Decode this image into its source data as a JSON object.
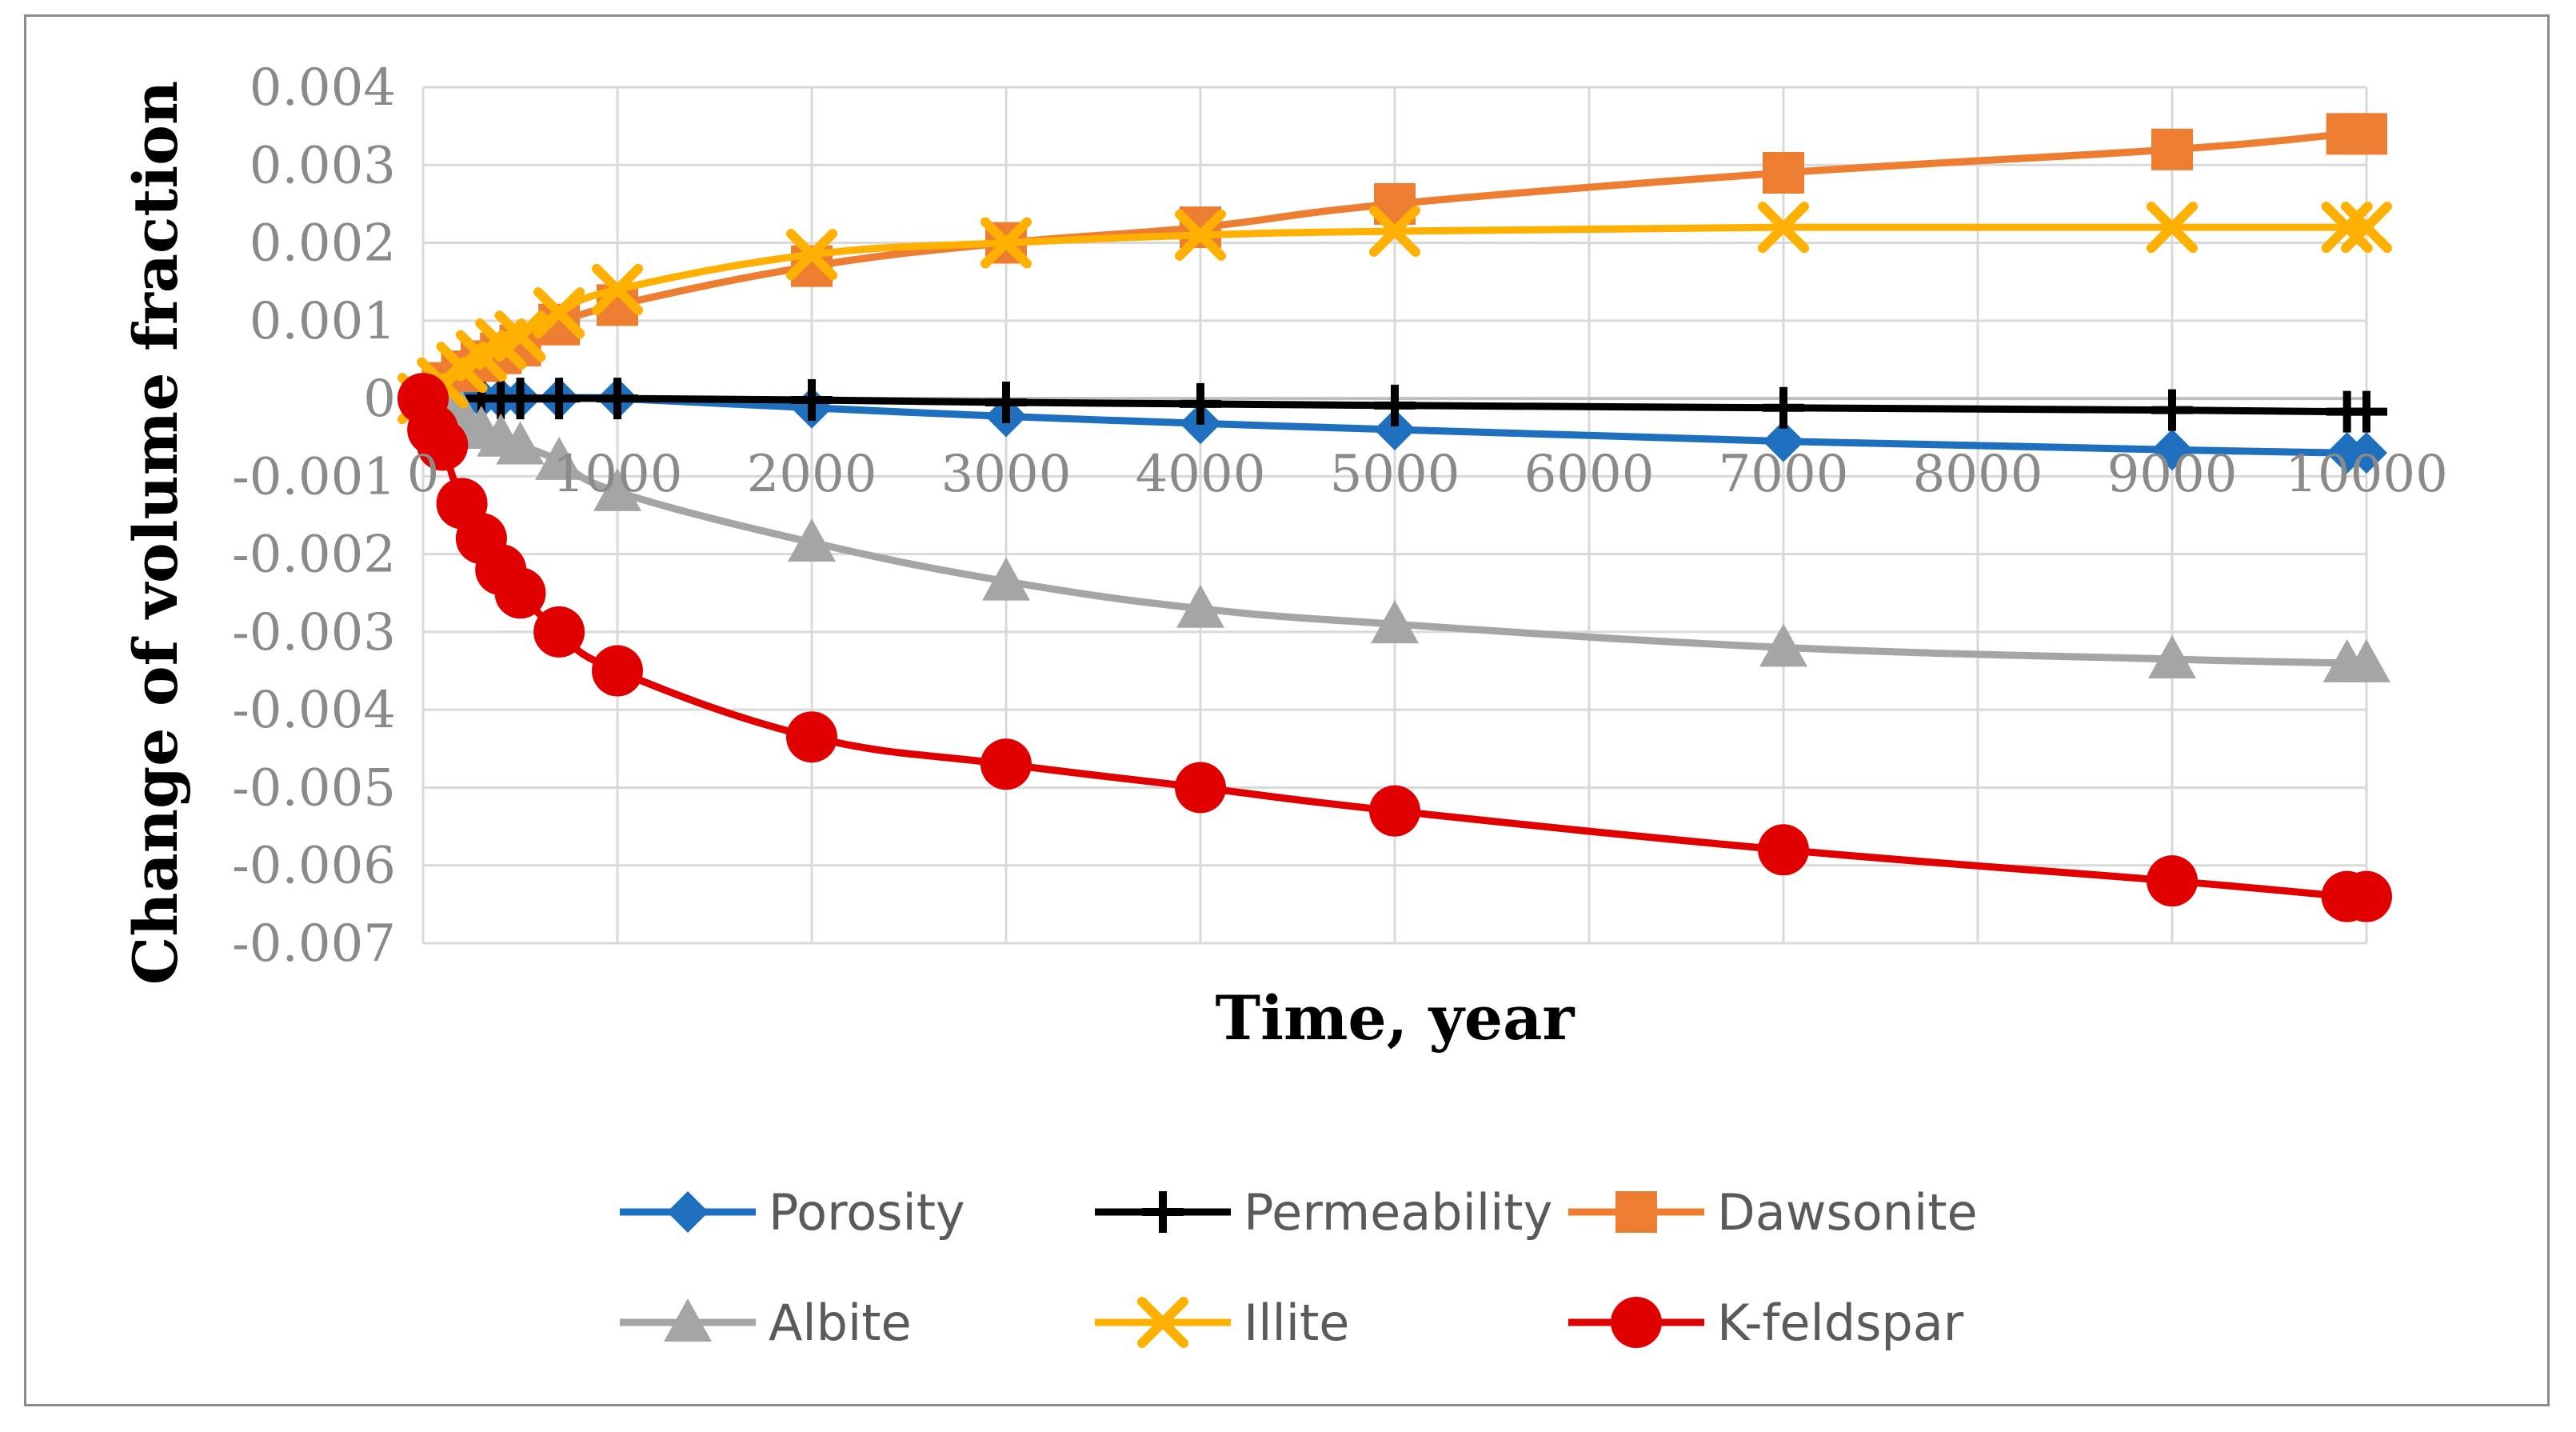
{
  "chart_data": {
    "type": "line",
    "title": "",
    "xlabel": "Time, year",
    "ylabel": "Change of volume fraction",
    "xlim": [
      0,
      10000
    ],
    "ylim": [
      -0.007,
      0.004
    ],
    "xticks": [
      0,
      1000,
      2000,
      3000,
      4000,
      5000,
      6000,
      7000,
      8000,
      9000,
      10000
    ],
    "xtick_labels": [
      "0",
      "1000",
      "2000",
      "3000",
      "4000",
      "5000",
      "6000",
      "7000",
      "8000",
      "9000",
      "10000"
    ],
    "yticks": [
      0.004,
      0.003,
      0.002,
      0.001,
      0,
      -0.001,
      -0.002,
      -0.003,
      -0.004,
      -0.005,
      -0.006,
      -0.007
    ],
    "ytick_labels": [
      "0.004",
      "0.003",
      "0.002",
      "0.001",
      "0",
      "-0.001",
      "-0.002",
      "-0.003",
      "-0.004",
      "-0.005",
      "-0.006",
      "-0.007"
    ],
    "grid": true,
    "legend_position": "bottom",
    "series": [
      {
        "name": "Porosity",
        "color": "#1f6fbf",
        "marker": "diamond",
        "x": [
          0,
          100,
          200,
          300,
          400,
          500,
          700,
          1000,
          2000,
          3000,
          4000,
          5000,
          7000,
          9000,
          9900,
          10000
        ],
        "y": [
          0,
          0,
          0,
          0,
          0,
          0,
          0,
          0,
          -0.00012,
          -0.00023,
          -0.00032,
          -0.0004,
          -0.00055,
          -0.00066,
          -0.0007,
          -0.0007
        ]
      },
      {
        "name": "Permeability",
        "color": "#000000",
        "marker": "plus",
        "x": [
          300,
          400,
          500,
          700,
          1000,
          2000,
          3000,
          4000,
          5000,
          7000,
          9000,
          9900,
          10000
        ],
        "y": [
          0,
          0,
          0,
          0,
          0,
          -2e-05,
          -5e-05,
          -7e-05,
          -9e-05,
          -0.00012,
          -0.00015,
          -0.00017,
          -0.00017
        ]
      },
      {
        "name": "Dawsonite",
        "color": "#ed7d31",
        "marker": "square",
        "x": [
          0,
          100,
          200,
          300,
          400,
          500,
          700,
          1000,
          2000,
          3000,
          4000,
          5000,
          7000,
          9000,
          9900,
          10000
        ],
        "y": [
          0,
          0.0002,
          0.00035,
          0.00048,
          0.00058,
          0.00068,
          0.00095,
          0.0012,
          0.0017,
          0.002,
          0.0022,
          0.0025,
          0.0029,
          0.0032,
          0.0034,
          0.0034
        ]
      },
      {
        "name": "Albite",
        "color": "#a5a5a5",
        "marker": "triangle",
        "x": [
          0,
          100,
          200,
          300,
          400,
          500,
          700,
          1000,
          2000,
          3000,
          4000,
          5000,
          7000,
          9000,
          9900,
          10000
        ],
        "y": [
          0,
          -0.0001,
          -0.0002,
          -0.0004,
          -0.0005,
          -0.0006,
          -0.0008,
          -0.0012,
          -0.00185,
          -0.00235,
          -0.0027,
          -0.0029,
          -0.0032,
          -0.00335,
          -0.0034,
          -0.0034
        ]
      },
      {
        "name": "Illite",
        "color": "#ffb000",
        "marker": "x",
        "x": [
          0,
          100,
          200,
          300,
          400,
          500,
          700,
          1000,
          2000,
          3000,
          4000,
          5000,
          7000,
          9000,
          9900,
          10000
        ],
        "y": [
          0,
          0.0002,
          0.0004,
          0.00055,
          0.0007,
          0.0008,
          0.0011,
          0.0014,
          0.00185,
          0.002,
          0.0021,
          0.00215,
          0.0022,
          0.0022,
          0.0022,
          0.0022
        ]
      },
      {
        "name": "K-feldspar",
        "color": "#e00000",
        "marker": "circle",
        "x": [
          0,
          50,
          100,
          200,
          300,
          400,
          500,
          700,
          1000,
          2000,
          3000,
          4000,
          5000,
          7000,
          9000,
          9900,
          10000
        ],
        "y": [
          0,
          -0.0004,
          -0.0006,
          -0.00135,
          -0.0018,
          -0.0022,
          -0.0025,
          -0.003,
          -0.0035,
          -0.00435,
          -0.0047,
          -0.005,
          -0.0053,
          -0.0058,
          -0.0062,
          -0.0064,
          -0.0064
        ]
      }
    ]
  }
}
